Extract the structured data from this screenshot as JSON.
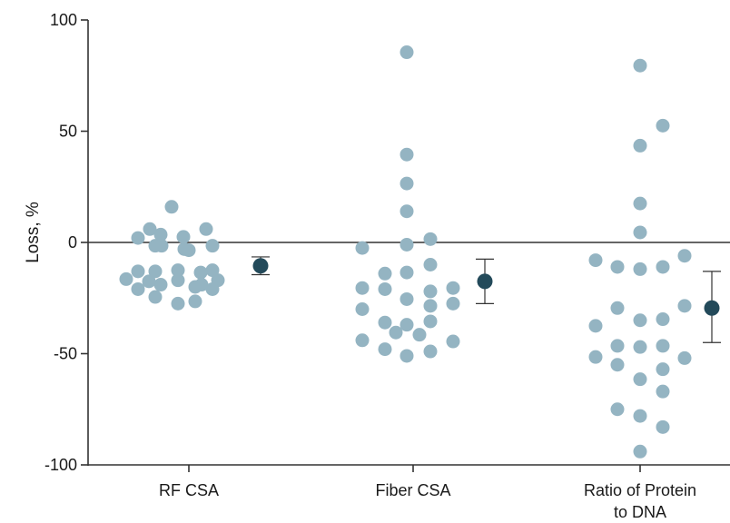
{
  "chart_data": {
    "type": "scatter",
    "ylabel": "Loss, %",
    "xlabel": "",
    "ylim": [
      -100,
      100
    ],
    "yticks": [
      100,
      50,
      0,
      -50,
      -100
    ],
    "categories": [
      {
        "lines": [
          "RF CSA"
        ]
      },
      {
        "lines": [
          "Fiber CSA"
        ]
      },
      {
        "lines": [
          "Ratio of Protein",
          "to DNA"
        ]
      }
    ],
    "series": [
      {
        "category": 0,
        "points": [
          {
            "x": -0.19,
            "y": 16
          },
          {
            "x": -0.43,
            "y": 6
          },
          {
            "x": 0.19,
            "y": 6
          },
          {
            "x": -0.56,
            "y": 2
          },
          {
            "x": -0.31,
            "y": 3.5
          },
          {
            "x": -0.06,
            "y": 2.5
          },
          {
            "x": -0.37,
            "y": -1.5
          },
          {
            "x": -0.3,
            "y": -1.5
          },
          {
            "x": -0.05,
            "y": -3
          },
          {
            "x": 0.0,
            "y": -3.5
          },
          {
            "x": 0.26,
            "y": -1.5
          },
          {
            "x": -0.56,
            "y": -13
          },
          {
            "x": -0.37,
            "y": -13
          },
          {
            "x": -0.12,
            "y": -12.5
          },
          {
            "x": 0.13,
            "y": -13.5
          },
          {
            "x": 0.26,
            "y": -12.5
          },
          {
            "x": -0.69,
            "y": -16.5
          },
          {
            "x": -0.44,
            "y": -17.5
          },
          {
            "x": -0.31,
            "y": -19
          },
          {
            "x": -0.12,
            "y": -17
          },
          {
            "x": 0.07,
            "y": -20
          },
          {
            "x": 0.14,
            "y": -19
          },
          {
            "x": 0.32,
            "y": -17
          },
          {
            "x": -0.56,
            "y": -21
          },
          {
            "x": 0.26,
            "y": -21
          },
          {
            "x": -0.37,
            "y": -24.5
          },
          {
            "x": 0.07,
            "y": -26.5
          },
          {
            "x": -0.12,
            "y": -27.5
          }
        ],
        "mean": -10.5,
        "err_low": -14.5,
        "err_high": -6.5
      },
      {
        "category": 1,
        "points": [
          {
            "x": -0.07,
            "y": 85.5
          },
          {
            "x": -0.07,
            "y": 39.5
          },
          {
            "x": -0.07,
            "y": 26.5
          },
          {
            "x": -0.07,
            "y": 14
          },
          {
            "x": -0.56,
            "y": -2.5
          },
          {
            "x": -0.07,
            "y": -1
          },
          {
            "x": 0.19,
            "y": 1.5
          },
          {
            "x": -0.31,
            "y": -14
          },
          {
            "x": -0.07,
            "y": -13.5
          },
          {
            "x": 0.19,
            "y": -10
          },
          {
            "x": -0.56,
            "y": -20.5
          },
          {
            "x": -0.31,
            "y": -21
          },
          {
            "x": 0.19,
            "y": -22
          },
          {
            "x": 0.44,
            "y": -20.5
          },
          {
            "x": -0.07,
            "y": -25.5
          },
          {
            "x": 0.19,
            "y": -28.5
          },
          {
            "x": 0.44,
            "y": -27.5
          },
          {
            "x": -0.56,
            "y": -30
          },
          {
            "x": -0.31,
            "y": -36
          },
          {
            "x": -0.07,
            "y": -37
          },
          {
            "x": 0.19,
            "y": -35.5
          },
          {
            "x": -0.19,
            "y": -40.5
          },
          {
            "x": 0.07,
            "y": -41.5
          },
          {
            "x": -0.56,
            "y": -44
          },
          {
            "x": 0.44,
            "y": -44.5
          },
          {
            "x": -0.31,
            "y": -48
          },
          {
            "x": -0.07,
            "y": -51
          },
          {
            "x": 0.19,
            "y": -49
          }
        ],
        "mean": -17.5,
        "err_low": -27.5,
        "err_high": -7.5
      },
      {
        "category": 2,
        "points": [
          {
            "x": 0.0,
            "y": 79.5
          },
          {
            "x": 0.25,
            "y": 52.5
          },
          {
            "x": 0.0,
            "y": 43.5
          },
          {
            "x": 0.0,
            "y": 17.5
          },
          {
            "x": 0.0,
            "y": 4.5
          },
          {
            "x": -0.49,
            "y": -8
          },
          {
            "x": -0.25,
            "y": -11
          },
          {
            "x": 0.0,
            "y": -12
          },
          {
            "x": 0.25,
            "y": -11
          },
          {
            "x": 0.49,
            "y": -6
          },
          {
            "x": -0.25,
            "y": -29.5
          },
          {
            "x": 0.49,
            "y": -28.5
          },
          {
            "x": -0.49,
            "y": -37.5
          },
          {
            "x": 0.0,
            "y": -35
          },
          {
            "x": 0.25,
            "y": -34.5
          },
          {
            "x": -0.25,
            "y": -46.5
          },
          {
            "x": 0.0,
            "y": -47
          },
          {
            "x": 0.25,
            "y": -46.5
          },
          {
            "x": -0.49,
            "y": -51.5
          },
          {
            "x": 0.49,
            "y": -52
          },
          {
            "x": -0.25,
            "y": -55
          },
          {
            "x": 0.25,
            "y": -57
          },
          {
            "x": 0.0,
            "y": -61.5
          },
          {
            "x": 0.25,
            "y": -67
          },
          {
            "x": -0.25,
            "y": -75
          },
          {
            "x": 0.0,
            "y": -78
          },
          {
            "x": 0.25,
            "y": -83
          },
          {
            "x": 0.0,
            "y": -94
          }
        ],
        "mean": -29.5,
        "err_low": -45,
        "err_high": -13
      }
    ],
    "colors": {
      "point": "#94b4c2",
      "mean": "#234a5a",
      "axis": "#333333",
      "zero_line": "#333333"
    },
    "grid": false,
    "legend": "none"
  }
}
